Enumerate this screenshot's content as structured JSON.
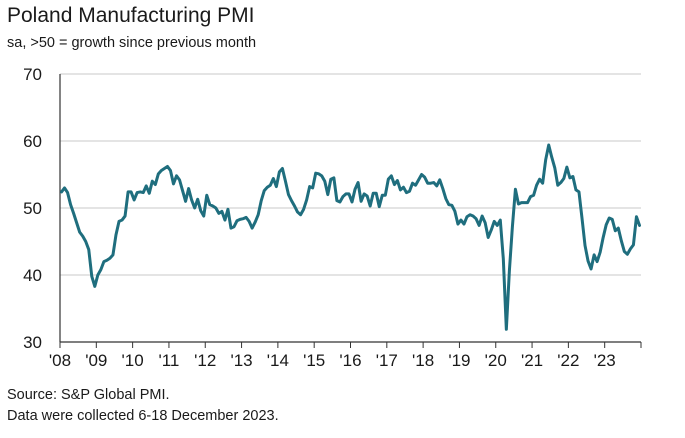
{
  "chart_data": {
    "type": "line",
    "title": "Poland Manufacturing PMI",
    "subtitle": "sa, >50 = growth since previous month",
    "x_tick_labels": [
      "'08",
      "'09",
      "'10",
      "'11",
      "'12",
      "'13",
      "'14",
      "'15",
      "'16",
      "'17",
      "'18",
      "'19",
      "'20",
      "'21",
      "'22",
      "'23"
    ],
    "y_ticks": [
      30,
      40,
      50,
      60,
      70
    ],
    "ylim": [
      30,
      70
    ],
    "xlim": [
      "2008-01",
      "2023-12"
    ],
    "grid": "horizontal",
    "line_color": "#1f6e7e",
    "series": [
      {
        "x": [
          "2008-01",
          "2008-02",
          "2008-03",
          "2008-04",
          "2008-05",
          "2008-06",
          "2008-07",
          "2008-08",
          "2008-09",
          "2008-10",
          "2008-11",
          "2008-12",
          "2009-01",
          "2009-02",
          "2009-03",
          "2009-04",
          "2009-05",
          "2009-06",
          "2009-07",
          "2009-08",
          "2009-09",
          "2009-10",
          "2009-11",
          "2009-12",
          "2010-01",
          "2010-02",
          "2010-03",
          "2010-04",
          "2010-05",
          "2010-06",
          "2010-07",
          "2010-08",
          "2010-09",
          "2010-10",
          "2010-11",
          "2010-12",
          "2011-01",
          "2011-02",
          "2011-03",
          "2011-04",
          "2011-05",
          "2011-06",
          "2011-07",
          "2011-08",
          "2011-09",
          "2011-10",
          "2011-11",
          "2011-12",
          "2012-01",
          "2012-02",
          "2012-03",
          "2012-04",
          "2012-05",
          "2012-06",
          "2012-07",
          "2012-08",
          "2012-09",
          "2012-10",
          "2012-11",
          "2012-12",
          "2013-01",
          "2013-02",
          "2013-03",
          "2013-04",
          "2013-05",
          "2013-06",
          "2013-07",
          "2013-08",
          "2013-09",
          "2013-10",
          "2013-11",
          "2013-12",
          "2014-01",
          "2014-02",
          "2014-03",
          "2014-04",
          "2014-05",
          "2014-06",
          "2014-07",
          "2014-08",
          "2014-09",
          "2014-10",
          "2014-11",
          "2014-12",
          "2015-01",
          "2015-02",
          "2015-03",
          "2015-04",
          "2015-05",
          "2015-06",
          "2015-07",
          "2015-08",
          "2015-09",
          "2015-10",
          "2015-11",
          "2015-12",
          "2016-01",
          "2016-02",
          "2016-03",
          "2016-04",
          "2016-05",
          "2016-06",
          "2016-07",
          "2016-08",
          "2016-09",
          "2016-10",
          "2016-11",
          "2016-12",
          "2017-01",
          "2017-02",
          "2017-03",
          "2017-04",
          "2017-05",
          "2017-06",
          "2017-07",
          "2017-08",
          "2017-09",
          "2017-10",
          "2017-11",
          "2017-12",
          "2018-01",
          "2018-02",
          "2018-03",
          "2018-04",
          "2018-05",
          "2018-06",
          "2018-07",
          "2018-08",
          "2018-09",
          "2018-10",
          "2018-11",
          "2018-12",
          "2019-01",
          "2019-02",
          "2019-03",
          "2019-04",
          "2019-05",
          "2019-06",
          "2019-07",
          "2019-08",
          "2019-09",
          "2019-10",
          "2019-11",
          "2019-12",
          "2020-01",
          "2020-02",
          "2020-03",
          "2020-04",
          "2020-05",
          "2020-06",
          "2020-07",
          "2020-08",
          "2020-09",
          "2020-10",
          "2020-11",
          "2020-12",
          "2021-01",
          "2021-02",
          "2021-03",
          "2021-04",
          "2021-05",
          "2021-06",
          "2021-07",
          "2021-08",
          "2021-09",
          "2021-10",
          "2021-11",
          "2021-12",
          "2022-01",
          "2022-02",
          "2022-03",
          "2022-04",
          "2022-05",
          "2022-06",
          "2022-07",
          "2022-08",
          "2022-09",
          "2022-10",
          "2022-11",
          "2022-12",
          "2023-01",
          "2023-02",
          "2023-03",
          "2023-04",
          "2023-05",
          "2023-06",
          "2023-07",
          "2023-08",
          "2023-09",
          "2023-10",
          "2023-11",
          "2023-12"
        ],
        "y": [
          52.4,
          53.0,
          52.3,
          50.5,
          49.2,
          47.8,
          46.4,
          45.8,
          45.0,
          43.8,
          39.8,
          38.3,
          40.0,
          40.8,
          42.0,
          42.2,
          42.5,
          43.0,
          46.0,
          48.0,
          48.2,
          48.8,
          52.4,
          52.4,
          51.2,
          52.3,
          52.4,
          52.3,
          53.3,
          52.2,
          54.0,
          53.5,
          55.1,
          55.6,
          55.9,
          56.2,
          55.6,
          53.6,
          54.8,
          54.2,
          52.6,
          51.0,
          52.9,
          51.2,
          50.0,
          51.3,
          49.6,
          48.8,
          51.9,
          50.5,
          50.3,
          50.0,
          49.2,
          49.5,
          48.2,
          49.8,
          47.0,
          47.2,
          48.1,
          48.3,
          48.4,
          48.6,
          48.0,
          47.0,
          47.9,
          49.0,
          51.1,
          52.6,
          53.1,
          53.4,
          54.4,
          53.2,
          55.4,
          55.9,
          54.0,
          52.0,
          51.1,
          50.3,
          49.4,
          49.0,
          49.8,
          51.2,
          53.2,
          53.0,
          55.2,
          55.1,
          54.8,
          54.0,
          52.0,
          54.3,
          54.5,
          51.1,
          50.9,
          51.7,
          52.1,
          52.1,
          50.9,
          52.8,
          53.8,
          51.0,
          52.1,
          51.8,
          50.3,
          52.2,
          52.2,
          50.2,
          51.9,
          51.9,
          54.3,
          54.8,
          53.5,
          54.1,
          52.7,
          53.1,
          52.3,
          52.5,
          53.7,
          53.4,
          54.2,
          55.0,
          54.6,
          53.7,
          53.7,
          53.8,
          53.3,
          54.2,
          52.9,
          51.4,
          50.5,
          50.4,
          49.5,
          47.6,
          48.2,
          47.6,
          48.7,
          49.0,
          48.8,
          48.4,
          47.4,
          48.8,
          47.8,
          45.6,
          46.7,
          48.0,
          47.4,
          48.2,
          42.4,
          31.9,
          40.6,
          47.2,
          52.8,
          50.6,
          50.8,
          50.8,
          50.8,
          51.7,
          51.9,
          53.4,
          54.3,
          53.7,
          57.2,
          59.4,
          57.6,
          56.0,
          53.4,
          53.8,
          54.4,
          56.1,
          54.5,
          54.7,
          52.7,
          52.4,
          48.5,
          44.4,
          42.1,
          40.9,
          43.0,
          42.0,
          43.4,
          45.6,
          47.5,
          48.5,
          48.3,
          46.6,
          47.0,
          45.1,
          43.5,
          43.1,
          43.9,
          44.5,
          48.7,
          47.4
        ]
      }
    ],
    "source": "Source: S&P Global PMI.",
    "note": "Data were collected 6-18 December 2023."
  }
}
